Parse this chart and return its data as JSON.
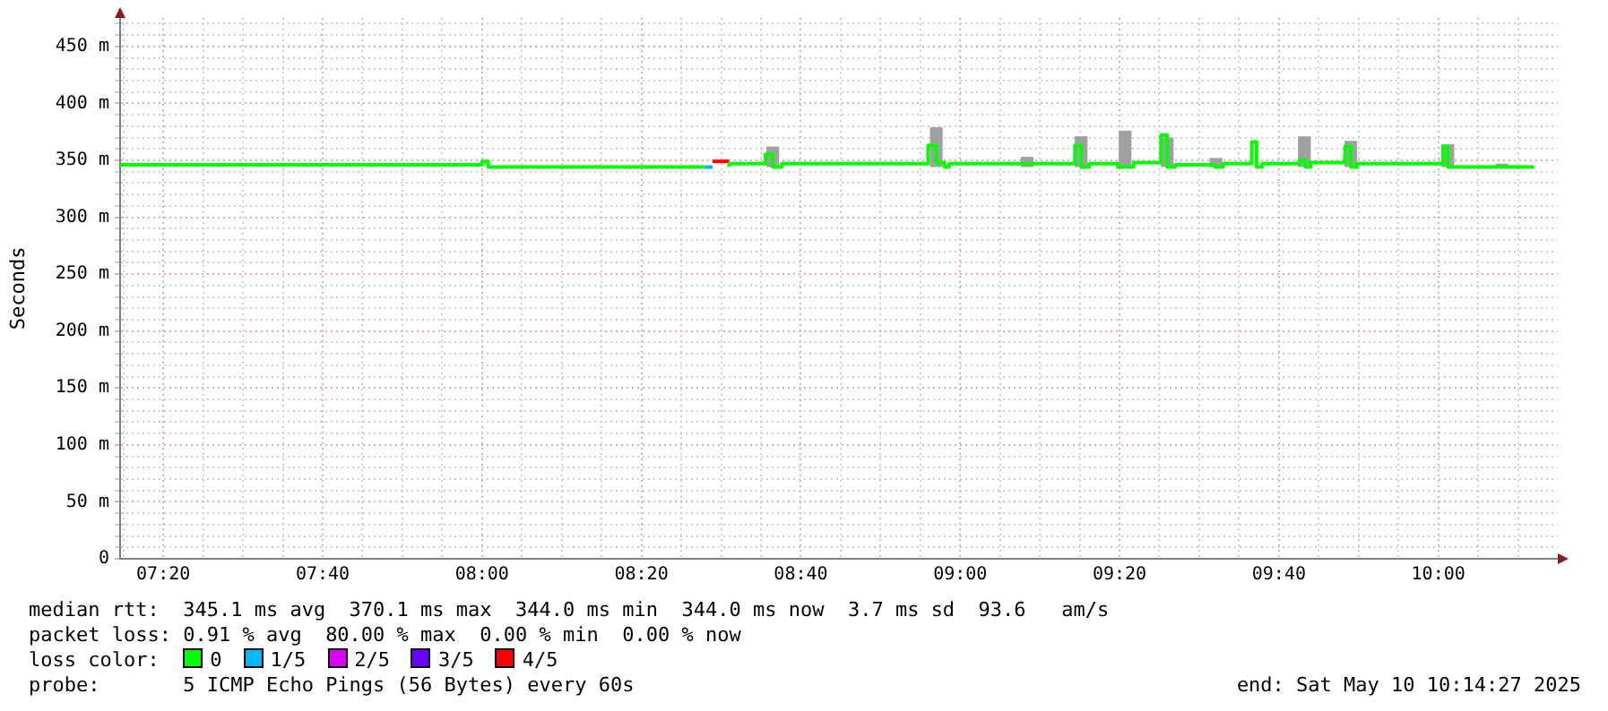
{
  "chart_data": {
    "type": "step",
    "ylabel": "Seconds",
    "legend": "bottom",
    "legend_title": "loss color:",
    "grid": true,
    "xlim": [
      7.243,
      10.25
    ],
    "xticks": [
      {
        "value": 7.25,
        "label": null
      },
      {
        "value": 7.3333,
        "label": "07:20"
      },
      {
        "value": 7.4167,
        "label": null
      },
      {
        "value": 7.5,
        "label": null
      },
      {
        "value": 7.5833,
        "label": null
      },
      {
        "value": 7.6667,
        "label": "07:40"
      },
      {
        "value": 7.75,
        "label": null
      },
      {
        "value": 7.8333,
        "label": null
      },
      {
        "value": 7.9167,
        "label": null
      },
      {
        "value": 8,
        "label": "08:00"
      },
      {
        "value": 8.0833,
        "label": null
      },
      {
        "value": 8.1667,
        "label": null
      },
      {
        "value": 8.25,
        "label": null
      },
      {
        "value": 8.3333,
        "label": "08:20"
      },
      {
        "value": 8.4167,
        "label": null
      },
      {
        "value": 8.5,
        "label": null
      },
      {
        "value": 8.5833,
        "label": null
      },
      {
        "value": 8.6667,
        "label": "08:40"
      },
      {
        "value": 8.75,
        "label": null
      },
      {
        "value": 8.8333,
        "label": null
      },
      {
        "value": 8.9167,
        "label": null
      },
      {
        "value": 9,
        "label": "09:00"
      },
      {
        "value": 9.0833,
        "label": null
      },
      {
        "value": 9.1667,
        "label": null
      },
      {
        "value": 9.25,
        "label": null
      },
      {
        "value": 9.3333,
        "label": "09:20"
      },
      {
        "value": 9.4167,
        "label": null
      },
      {
        "value": 9.5,
        "label": null
      },
      {
        "value": 9.5833,
        "label": null
      },
      {
        "value": 9.6667,
        "label": "09:40"
      },
      {
        "value": 9.75,
        "label": null
      },
      {
        "value": 9.8333,
        "label": null
      },
      {
        "value": 9.9167,
        "label": null
      },
      {
        "value": 10,
        "label": "10:00"
      },
      {
        "value": 10.0833,
        "label": null
      },
      {
        "value": 10.1667,
        "label": null
      }
    ],
    "ylim": [
      0,
      475
    ],
    "yticks": [
      0,
      {
        "value": 10,
        "label": null
      },
      {
        "value": 20,
        "label": null
      },
      {
        "value": 30,
        "label": null
      },
      {
        "value": 40,
        "label": null
      },
      {
        "value": 50,
        "label": "50 m"
      },
      {
        "value": 60,
        "label": null
      },
      {
        "value": 70,
        "label": null
      },
      {
        "value": 80,
        "label": null
      },
      {
        "value": 90,
        "label": null
      },
      {
        "value": 100,
        "label": "100 m"
      },
      {
        "value": 110,
        "label": null
      },
      {
        "value": 120,
        "label": null
      },
      {
        "value": 130,
        "label": null
      },
      {
        "value": 140,
        "label": null
      },
      {
        "value": 150,
        "label": "150 m"
      },
      {
        "value": 160,
        "label": null
      },
      {
        "value": 170,
        "label": null
      },
      {
        "value": 180,
        "label": null
      },
      {
        "value": 190,
        "label": null
      },
      {
        "value": 200,
        "label": "200 m"
      },
      {
        "value": 210,
        "label": null
      },
      {
        "value": 220,
        "label": null
      },
      {
        "value": 230,
        "label": null
      },
      {
        "value": 240,
        "label": null
      },
      {
        "value": 250,
        "label": "250 m"
      },
      {
        "value": 260,
        "label": null
      },
      {
        "value": 270,
        "label": null
      },
      {
        "value": 280,
        "label": null
      },
      {
        "value": 290,
        "label": null
      },
      {
        "value": 300,
        "label": "300 m"
      },
      {
        "value": 310,
        "label": null
      },
      {
        "value": 320,
        "label": null
      },
      {
        "value": 330,
        "label": null
      },
      {
        "value": 340,
        "label": null
      },
      {
        "value": 350,
        "label": "350 m"
      },
      {
        "value": 360,
        "label": null
      },
      {
        "value": 370,
        "label": null
      },
      {
        "value": 380,
        "label": null
      },
      {
        "value": 390,
        "label": null
      },
      {
        "value": 400,
        "label": "400 m"
      },
      {
        "value": 410,
        "label": null
      },
      {
        "value": 420,
        "label": null
      },
      {
        "value": 430,
        "label": null
      },
      {
        "value": 440,
        "label": null
      },
      {
        "value": 450,
        "label": "450 m"
      },
      {
        "value": 460,
        "label": null
      },
      {
        "value": 470,
        "label": null
      }
    ],
    "series": [
      {
        "type": "bar",
        "color": "#a0a0a0",
        "x": [
          8.608,
          8.95,
          9.14,
          9.253,
          9.345,
          9.433,
          9.535,
          9.72,
          9.817,
          10.02,
          10.133
        ],
        "base": [
          344,
          344,
          344,
          344,
          344,
          344,
          344,
          344,
          344,
          344,
          344
        ],
        "values": [
          18,
          35,
          9,
          27,
          32,
          26,
          8,
          27,
          23,
          20,
          3
        ]
      },
      {
        "name": "0",
        "color": "#00ff00",
        "x": [
          7.243,
          8,
          8.013,
          8.043,
          8.465,
          8.466,
          8.517,
          8.593,
          8.608,
          8.627,
          8.933,
          8.95,
          8.967,
          8.977,
          9.24,
          9.253,
          9.27,
          9.33,
          9.363,
          9.42,
          9.433,
          9.45,
          9.533,
          9.55,
          9.61,
          9.62,
          9.632,
          9.71,
          9.722,
          9.733,
          9.805,
          9.817,
          9.83,
          10.01,
          10.02,
          10.03,
          10.2
        ],
        "values": [
          344,
          346,
          349,
          344,
          344,
          null,
          344,
          347,
          355,
          344,
          347,
          363,
          348,
          344,
          347,
          363,
          344,
          347,
          344,
          348,
          372,
          344,
          346,
          344,
          347,
          366,
          344,
          347,
          350,
          344,
          348,
          362,
          344,
          347,
          362,
          344,
          344
        ]
      },
      {
        "name": "1/5",
        "color": "#00b8ff",
        "x": [
          8.465,
          8.482
        ],
        "values": [
          344,
          344
        ]
      },
      {
        "name": "2/5",
        "color": "#dd00ff"
      },
      {
        "name": "3/5",
        "color": "#6a00ff"
      },
      {
        "name": "4/5",
        "color": "#ff0000",
        "x": [
          8.482,
          8.517
        ],
        "values": [
          349,
          349
        ]
      }
    ],
    "annotations": [
      "median rtt:  345.1 ms avg  370.1 ms max  344.0 ms min  344.0 ms now  3.7 ms sd  93.6   am/s",
      "packet loss: 0.91 % avg  80.00 % max  0.00 % min  0.00 % now",
      "probe:       5 ICMP Echo Pings (56 Bytes) every 60s",
      "end: Sat May 10 10:14:27 2025"
    ]
  }
}
